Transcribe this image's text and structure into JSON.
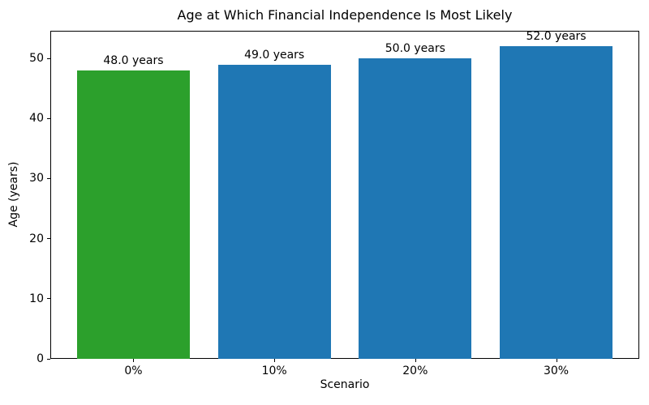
{
  "chart_data": {
    "type": "bar",
    "title": "Age at Which Financial Independence Is Most Likely",
    "xlabel": "Scenario",
    "ylabel": "Age (years)",
    "categories": [
      "0%",
      "10%",
      "20%",
      "30%"
    ],
    "values": [
      48.0,
      49.0,
      50.0,
      52.0
    ],
    "bar_labels": [
      "48.0 years",
      "49.0 years",
      "50.0 years",
      "52.0 years"
    ],
    "bar_colors": [
      "#2ca02c",
      "#1f77b4",
      "#1f77b4",
      "#1f77b4"
    ],
    "yticks": [
      0,
      10,
      20,
      30,
      40,
      50
    ],
    "ylim": [
      0,
      54.6
    ],
    "grid": false,
    "legend_position": "none",
    "spine_color": "#000000",
    "background_color": "#ffffff"
  }
}
